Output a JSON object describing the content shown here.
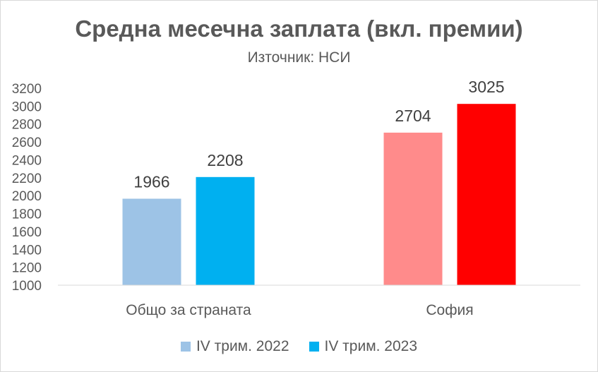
{
  "chart_data": {
    "type": "bar",
    "title": "Средна месечна заплата (вкл. премии)",
    "subtitle": "Източник: НСИ",
    "categories": [
      "Общо за страната",
      "София"
    ],
    "series": [
      {
        "name": "IV трим. 2022",
        "values": [
          1966,
          2704
        ],
        "colors": [
          "#9dc3e6",
          "#ff8b8b"
        ]
      },
      {
        "name": "IV трим. 2023",
        "values": [
          2208,
          3025
        ],
        "colors": [
          "#00b0f0",
          "#ff0000"
        ]
      }
    ],
    "legend_colors": [
      "#9dc3e6",
      "#00b0f0"
    ],
    "y_ticks": [
      1000,
      1200,
      1400,
      1600,
      1800,
      2000,
      2200,
      2400,
      2600,
      2800,
      3000,
      3200
    ],
    "ylim": [
      1000,
      3200
    ],
    "xlabel": "",
    "ylabel": "",
    "grid": false,
    "legend_position": "bottom"
  }
}
